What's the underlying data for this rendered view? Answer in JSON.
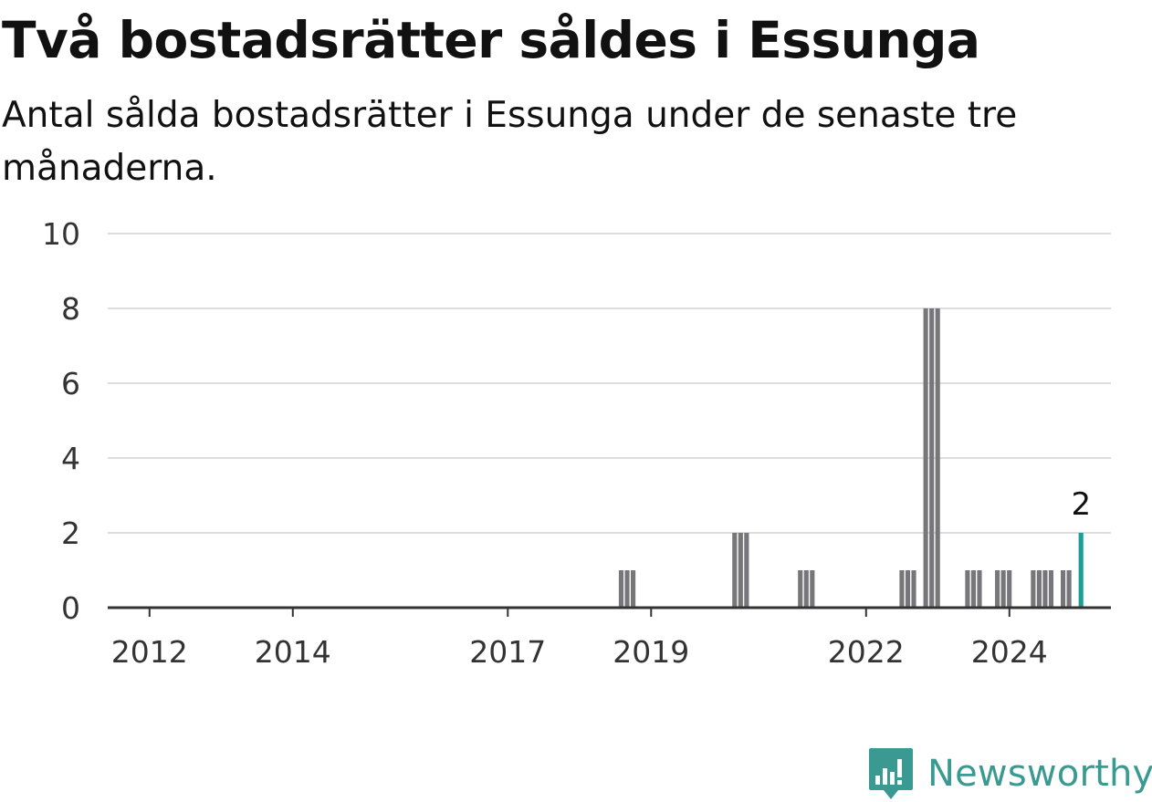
{
  "header": {
    "title": "Två bostadsrätter såldes i Essunga",
    "subtitle": "Antal sålda bostadsrätter i Essunga under de senaste tre månaderna."
  },
  "brand": {
    "name": "Newsworthy",
    "icon": "newsworthy-logo-icon",
    "color": "#3a9a92"
  },
  "colors": {
    "bar": "#77767b",
    "highlight": "#1a9e96",
    "grid": "#dddddd",
    "axis": "#333333",
    "tick_text": "#333333"
  },
  "chart_data": {
    "type": "bar",
    "title": "Två bostadsrätter såldes i Essunga",
    "subtitle": "Antal sålda bostadsrätter i Essunga under de senaste tre månaderna.",
    "xlabel": "",
    "ylabel": "",
    "ylim": [
      0,
      10
    ],
    "yticks": [
      "0",
      "2",
      "4",
      "6",
      "8",
      "10"
    ],
    "xlim": [
      "2011-06",
      "2025-06"
    ],
    "xticks": [
      "2012",
      "2014",
      "2017",
      "2019",
      "2022",
      "2024"
    ],
    "grid": true,
    "legend": "none",
    "bar_period": "rolling 3 months, monthly",
    "series": [
      {
        "values": [
          {
            "x": "2018-08",
            "y": 1
          },
          {
            "x": "2018-09",
            "y": 1
          },
          {
            "x": "2018-10",
            "y": 1
          },
          {
            "x": "2020-03",
            "y": 2
          },
          {
            "x": "2020-04",
            "y": 2
          },
          {
            "x": "2020-05",
            "y": 2
          },
          {
            "x": "2021-02",
            "y": 1
          },
          {
            "x": "2021-03",
            "y": 1
          },
          {
            "x": "2021-04",
            "y": 1
          },
          {
            "x": "2022-07",
            "y": 1
          },
          {
            "x": "2022-08",
            "y": 1
          },
          {
            "x": "2022-09",
            "y": 1
          },
          {
            "x": "2022-11",
            "y": 8
          },
          {
            "x": "2022-12",
            "y": 8
          },
          {
            "x": "2023-01",
            "y": 8
          },
          {
            "x": "2023-06",
            "y": 1
          },
          {
            "x": "2023-07",
            "y": 1
          },
          {
            "x": "2023-08",
            "y": 1
          },
          {
            "x": "2023-11",
            "y": 1
          },
          {
            "x": "2023-12",
            "y": 1
          },
          {
            "x": "2024-01",
            "y": 1
          },
          {
            "x": "2024-05",
            "y": 1
          },
          {
            "x": "2024-06",
            "y": 1
          },
          {
            "x": "2024-07",
            "y": 1
          },
          {
            "x": "2024-08",
            "y": 1
          },
          {
            "x": "2024-10",
            "y": 1
          },
          {
            "x": "2024-11",
            "y": 1
          },
          {
            "x": "2025-01",
            "y": 2
          }
        ]
      }
    ],
    "annotations": [
      {
        "x": "2025-01",
        "y": 2,
        "text": "2"
      }
    ]
  }
}
